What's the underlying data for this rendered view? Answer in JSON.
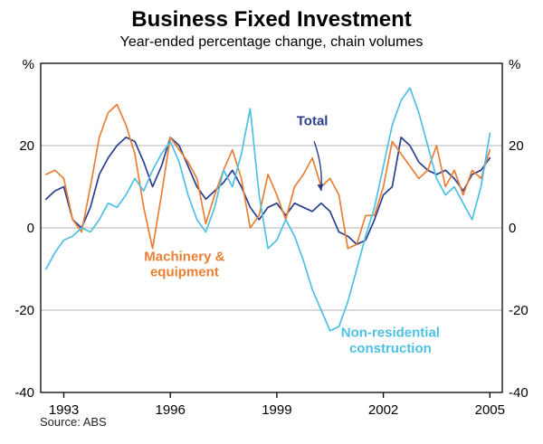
{
  "chart_data": {
    "type": "line",
    "title": "Business Fixed Investment",
    "subtitle": "Year-ended percentage change, chain volumes",
    "source": "Source: ABS",
    "xlabel": "",
    "ylabel": "",
    "y_unit": "%",
    "xlim": [
      1992.35,
      2005.35
    ],
    "ylim": [
      -40,
      40
    ],
    "y_ticks": [
      20,
      0,
      -20,
      -40
    ],
    "y_gridlines": [
      20,
      0,
      -20
    ],
    "x_ticks": [
      1993,
      1996,
      1999,
      2002,
      2005
    ],
    "grid": true,
    "legend_position": "inline-annotations",
    "colors": {
      "grid": "#b3b3b3",
      "axis": "#000000"
    },
    "x": [
      1992.5,
      1992.75,
      1993,
      1993.25,
      1993.5,
      1993.75,
      1994,
      1994.25,
      1994.5,
      1994.75,
      1995,
      1995.25,
      1995.5,
      1995.75,
      1996,
      1996.25,
      1996.5,
      1996.75,
      1997,
      1997.25,
      1997.5,
      1997.75,
      1998,
      1998.25,
      1998.5,
      1998.75,
      1999,
      1999.25,
      1999.5,
      1999.75,
      2000,
      2000.25,
      2000.5,
      2000.75,
      2001,
      2001.25,
      2001.5,
      2001.75,
      2002,
      2002.25,
      2002.5,
      2002.75,
      2003,
      2003.25,
      2003.5,
      2003.75,
      2004,
      2004.25,
      2004.5,
      2004.75,
      2005
    ],
    "series": [
      {
        "id": "total",
        "name": "Total",
        "color": "#2b3e8c",
        "values": [
          7,
          9,
          10,
          2,
          0,
          5,
          13,
          17,
          20,
          22,
          21,
          16,
          10,
          15,
          22,
          20,
          15,
          10,
          7,
          9,
          11,
          14,
          10,
          5,
          2,
          5,
          6,
          3,
          6,
          5,
          4,
          6,
          4,
          -1,
          -2,
          -4,
          -3,
          2,
          8,
          10,
          22,
          20,
          16,
          14,
          13,
          14,
          12,
          9,
          13,
          14,
          17
        ]
      },
      {
        "id": "machinery-equipment",
        "name": "Machinery & equipment",
        "color": "#e87f35",
        "values": [
          13,
          14,
          12,
          2,
          -1,
          10,
          22,
          28,
          30,
          25,
          18,
          5,
          -5,
          8,
          22,
          19,
          16,
          12,
          1,
          8,
          14,
          19,
          12,
          0,
          3,
          13,
          8,
          2,
          10,
          13,
          17,
          10,
          12,
          8,
          -5,
          -4,
          3,
          3,
          10,
          21,
          18,
          15,
          12,
          14,
          20,
          10,
          14,
          8,
          14,
          12,
          19
        ]
      },
      {
        "id": "non-residential-construction",
        "name": "Non-residential construction",
        "color": "#4ec0e4",
        "values": [
          -10,
          -6,
          -3,
          -2,
          0,
          -1,
          2,
          6,
          5,
          8,
          12,
          9,
          14,
          18,
          21,
          16,
          8,
          2,
          -1,
          5,
          14,
          10,
          18,
          29,
          8,
          -5,
          -3,
          2,
          -2,
          -8,
          -15,
          -20,
          -25,
          -24,
          -18,
          -10,
          -2,
          5,
          15,
          25,
          31,
          34,
          28,
          20,
          12,
          8,
          10,
          6,
          2,
          10,
          23
        ]
      }
    ],
    "annotations": [
      {
        "id": "total-label",
        "lines": [
          "Total"
        ],
        "color": "#2b3e8c",
        "x": 2000.0,
        "y": 25,
        "arrow": {
          "x1": 2000.05,
          "y1": 21,
          "x2": 2000.25,
          "y2": 9
        }
      },
      {
        "id": "machinery-equipment-label",
        "lines": [
          "Machinery &",
          "equipment"
        ],
        "color": "#e87f35",
        "x": 1996.4,
        "y": -8
      },
      {
        "id": "non-residential-construction-label",
        "lines": [
          "Non-residential",
          "construction"
        ],
        "color": "#4ec0e4",
        "x": 2002.2,
        "y": -26.5
      }
    ]
  }
}
